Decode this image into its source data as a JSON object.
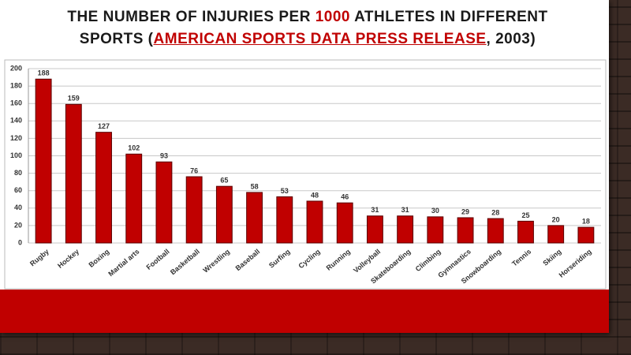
{
  "chart_data": {
    "type": "bar",
    "title_parts": [
      "THE NUMBER OF INJURIES PER ",
      "1000",
      " ATHLETES IN DIFFERENT SPORTS (",
      "AMERICAN SPORTS DATA PRESS RELEASE",
      ", 2003)"
    ],
    "categories": [
      "Rugby",
      "Hockey",
      "Boxing",
      "Martial arts",
      "Football",
      "Basketball",
      "Wrestling",
      "Baseball",
      "Surfing",
      "Cycling",
      "Running",
      "Volleyball",
      "Skateboarding",
      "Climbing",
      "Gymnastics",
      "Snowboarding",
      "Tennis",
      "Skiing",
      "Horseriding"
    ],
    "values": [
      188,
      159,
      127,
      102,
      93,
      76,
      65,
      58,
      53,
      48,
      46,
      31,
      31,
      30,
      29,
      28,
      25,
      20,
      18
    ],
    "color": "#c00000",
    "ylim": [
      0,
      200
    ],
    "yticks": [
      0,
      20,
      40,
      60,
      80,
      100,
      120,
      140,
      160,
      180,
      200
    ],
    "grid": true
  }
}
